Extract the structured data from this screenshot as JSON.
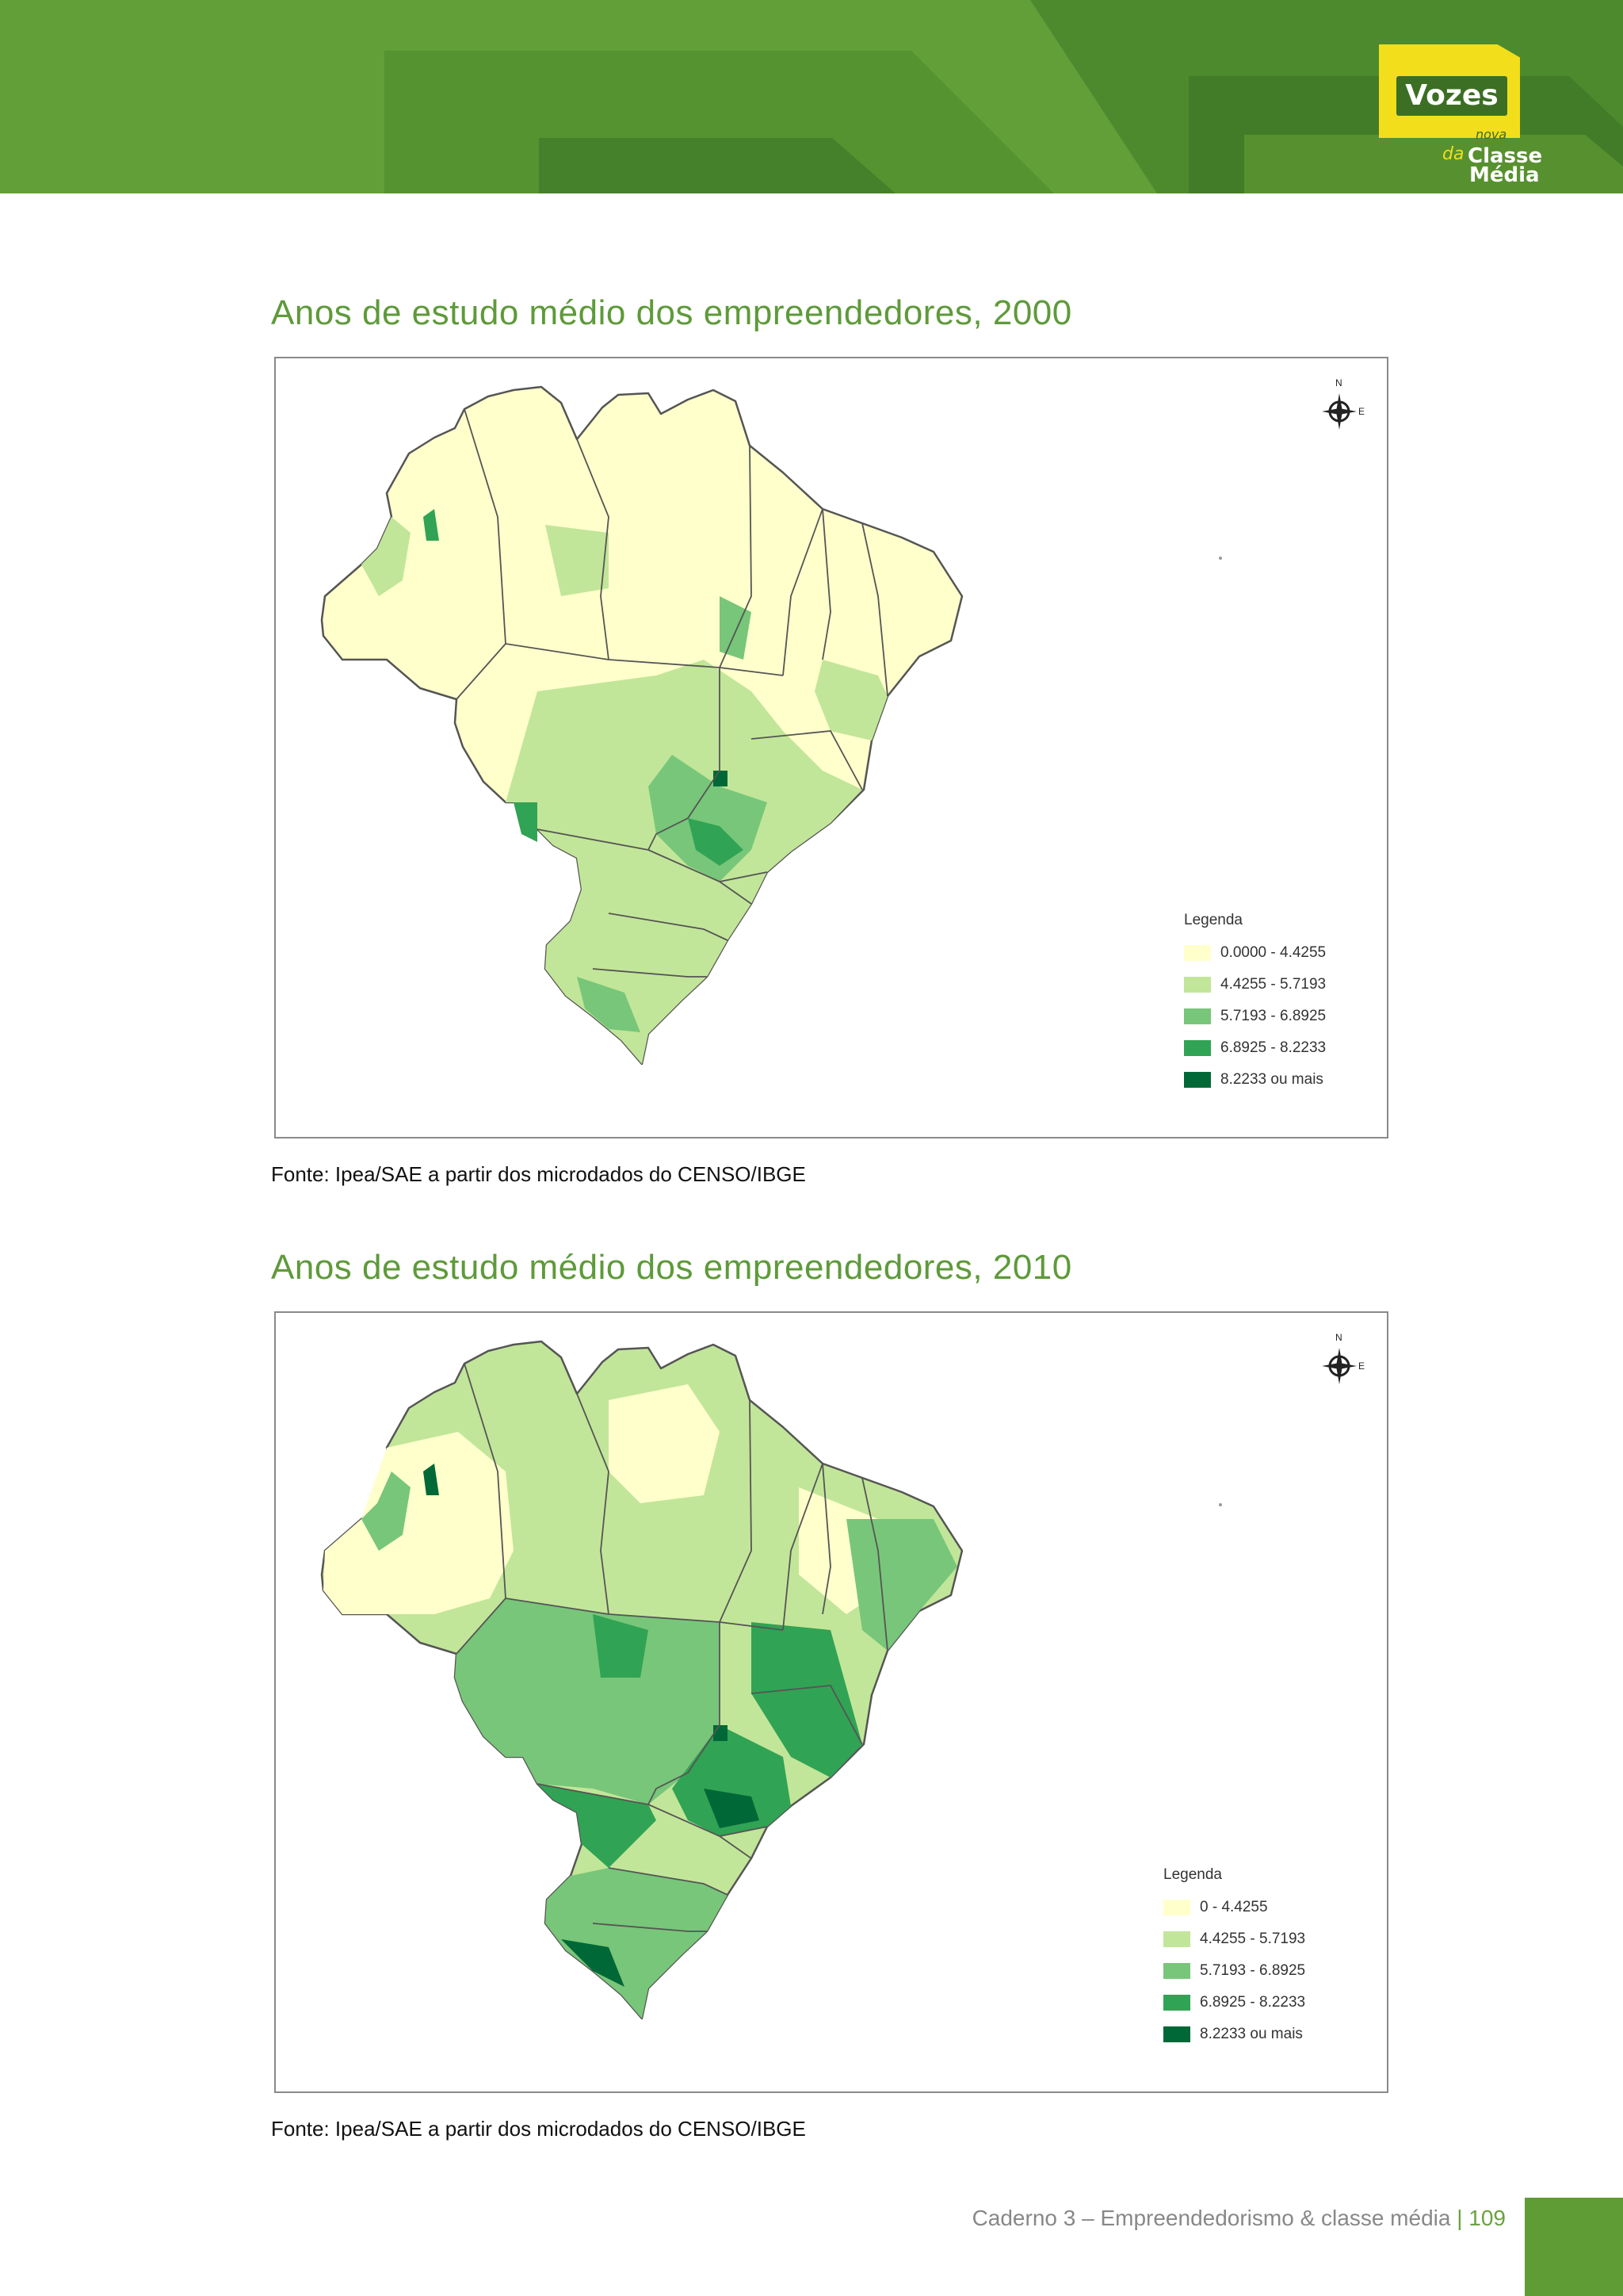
{
  "header": {
    "logo": {
      "word": "Vozes",
      "nova": "nova",
      "da": "da",
      "line1": "Classe",
      "line2": "Média"
    }
  },
  "maps": [
    {
      "title": "Anos de estudo médio dos empreendedores, 2000",
      "source": "Fonte: Ipea/SAE a partir dos microdados do CENSO/IBGE",
      "legend": {
        "title": "Legenda",
        "items": [
          {
            "label": "0.0000 - 4.4255",
            "color": "#ffffcc"
          },
          {
            "label": "4.4255 - 5.7193",
            "color": "#c2e699"
          },
          {
            "label": "5.7193 - 6.8925",
            "color": "#78c679"
          },
          {
            "label": "6.8925 - 8.2233",
            "color": "#31a354"
          },
          {
            "label": "8.2233 ou mais",
            "color": "#006837"
          }
        ]
      },
      "compass": {
        "north": "N",
        "east": "E"
      }
    },
    {
      "title": "Anos de estudo médio dos empreendedores, 2010",
      "source": "Fonte: Ipea/SAE a partir dos microdados do CENSO/IBGE",
      "legend": {
        "title": "Legenda",
        "items": [
          {
            "label": "0 - 4.4255",
            "color": "#ffffcc"
          },
          {
            "label": "4.4255 - 5.7193",
            "color": "#c2e699"
          },
          {
            "label": "5.7193 - 6.8925",
            "color": "#78c679"
          },
          {
            "label": "6.8925 - 8.2233",
            "color": "#31a354"
          },
          {
            "label": "8.2233 ou mais",
            "color": "#006837"
          }
        ]
      },
      "compass": {
        "north": "N",
        "east": "E"
      }
    }
  ],
  "footer": {
    "text": "Caderno 3 – Empreendedorismo & classe média",
    "separator": "|",
    "page": "109"
  }
}
